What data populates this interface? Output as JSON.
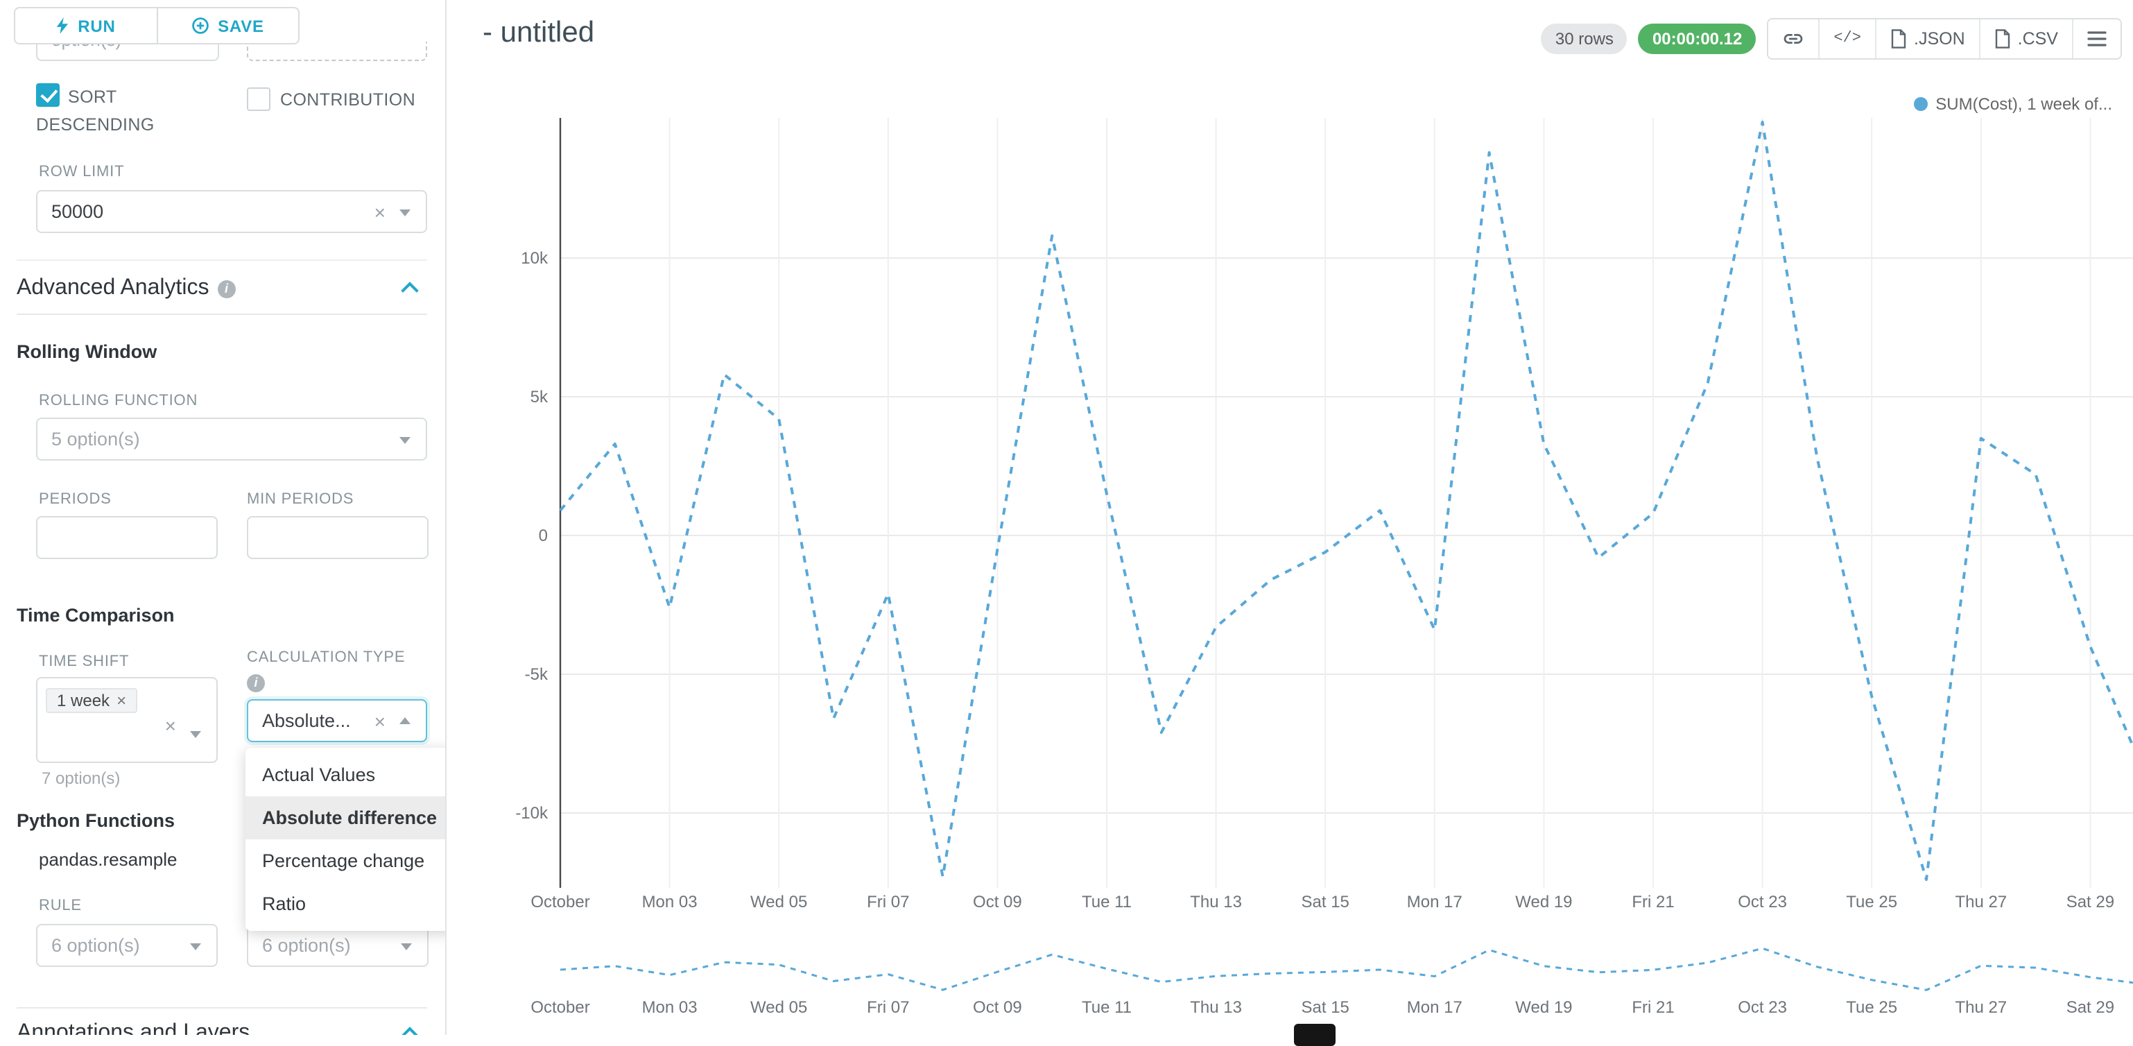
{
  "colors": {
    "accent": "#20a7c9",
    "timer_green": "#53b365",
    "series_blue": "#58a8d8"
  },
  "toolbar": {
    "run": "RUN",
    "save": "SAVE"
  },
  "panel": {
    "truncated_option_text": "option(s)",
    "sort_descending_label": "SORT DESCENDING",
    "sort_descending_checked": true,
    "contribution_label": "CONTRIBUTION",
    "contribution_checked": false,
    "row_limit_label": "ROW LIMIT",
    "row_limit_value": "50000",
    "advanced_analytics_title": "Advanced Analytics",
    "rolling_window_title": "Rolling Window",
    "rolling_function_label": "ROLLING FUNCTION",
    "rolling_function_placeholder": "5 option(s)",
    "periods_label": "PERIODS",
    "min_periods_label": "MIN PERIODS",
    "time_comparison_title": "Time Comparison",
    "time_shift_label": "TIME SHIFT",
    "time_shift_tag": "1 week",
    "time_shift_hint": "7 option(s)",
    "calculation_type_label": "CALCULATION TYPE",
    "calculation_type_value": "Absolute...",
    "calculation_type_options": [
      "Actual Values",
      "Absolute difference",
      "Percentage change",
      "Ratio"
    ],
    "calculation_type_selected": "Absolute difference",
    "python_functions_title": "Python Functions",
    "python_functions_sub": "pandas.resample",
    "rule_label": "RULE",
    "rule_placeholder": "6 option(s)",
    "rule2_placeholder": "6 option(s)",
    "annotations_title": "Annotations and Layers"
  },
  "header": {
    "title": "- untitled",
    "rows_badge": "30 rows",
    "timer_badge": "00:00:00.12",
    "json_label": ".JSON",
    "csv_label": ".CSV"
  },
  "chart_data": {
    "type": "line",
    "title": "",
    "legend": "SUM(Cost), 1 week of...",
    "legend_position": "top-right",
    "line_style": "dashed",
    "grid": true,
    "x_tick_labels": [
      "October",
      "Mon 03",
      "Wed 05",
      "Fri 07",
      "Oct 09",
      "Tue 11",
      "Thu 13",
      "Sat 15",
      "Mon 17",
      "Wed 19",
      "Fri 21",
      "Oct 23",
      "Tue 25",
      "Thu 27",
      "Sat 29"
    ],
    "x_tick_days": [
      1,
      3,
      5,
      7,
      9,
      11,
      13,
      15,
      17,
      19,
      21,
      23,
      25,
      27,
      29
    ],
    "y_tick_labels": [
      "10k",
      "5k",
      "0",
      "-5k",
      "-10k"
    ],
    "y_tick_values": [
      10000,
      5000,
      0,
      -5000,
      -10000
    ],
    "ylim": [
      -13000,
      15500
    ],
    "x_days": [
      1,
      2,
      3,
      4,
      5,
      6,
      7,
      8,
      9,
      10,
      11,
      12,
      13,
      14,
      15,
      16,
      17,
      18,
      19,
      20,
      21,
      22,
      23,
      24,
      25,
      26,
      27,
      28,
      29,
      30
    ],
    "series": [
      {
        "name": "SUM(Cost), 1 week of...",
        "values": [
          900,
          3300,
          -2600,
          5800,
          4200,
          -6600,
          -2100,
          -12300,
          -500,
          10800,
          1500,
          -7100,
          -3300,
          -1600,
          -600,
          900,
          -3400,
          13800,
          3300,
          -800,
          800,
          5500,
          14900,
          2800,
          -5800,
          -12400,
          3500,
          2200,
          -4000,
          -8600
        ]
      }
    ],
    "has_preview_strip": true
  }
}
